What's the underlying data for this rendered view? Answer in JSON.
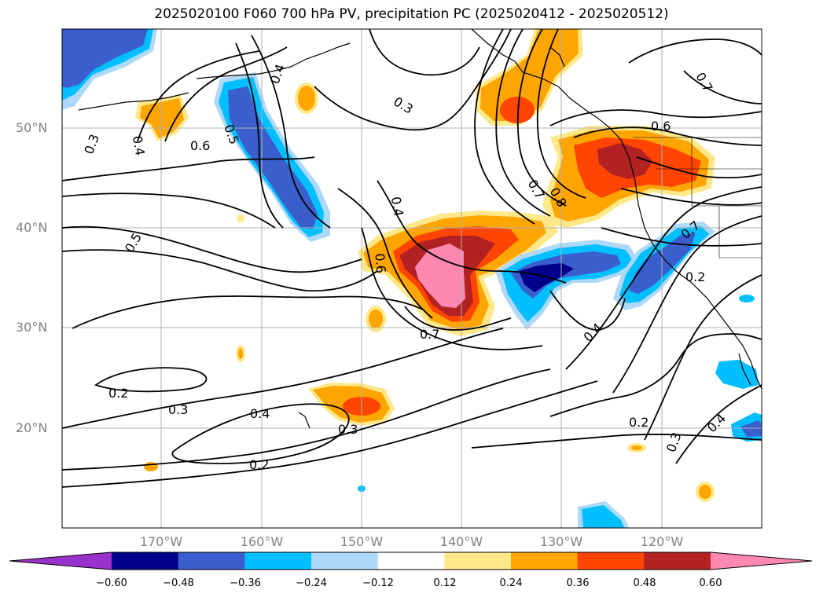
{
  "title": "2025020100 F060 700 hPa PV, precipitation PC (2025020412 - 2025020512)",
  "lat_labels": [
    "50°N",
    "40°N",
    "30°N",
    "20°N"
  ],
  "lon_labels": [
    "170°W",
    "160°W",
    "150°W",
    "140°W",
    "130°W",
    "120°W"
  ],
  "contour_labels": [
    "0.3",
    "0.4",
    "0.6",
    "0.5",
    "0.4",
    "0.3",
    "0.7",
    "0.6",
    "0.8",
    "0.7",
    "0.5",
    "0.4",
    "0.6",
    "0.7",
    "0.2",
    "0.4",
    "0.2",
    "0.3",
    "0.4",
    "0.3",
    "0.2",
    "0.2",
    "0.3",
    "0.4",
    "0.7"
  ],
  "colorbar": {
    "ticks": [
      "−0.60",
      "−0.48",
      "−0.36",
      "−0.24",
      "−0.12",
      "0.12",
      "0.24",
      "0.36",
      "0.48",
      "0.60"
    ],
    "colors": [
      "#9932cc",
      "#00008b",
      "#3a5fcd",
      "#00bfff",
      "#add8f8",
      "#ffffff",
      "#ffe88a",
      "#ffa500",
      "#ff4500",
      "#b22222",
      "#ff88b0"
    ]
  },
  "colors": {
    "neg1": "#add8f8",
    "neg2": "#00bfff",
    "neg3": "#3a5fcd",
    "neg4": "#00008b",
    "pos1": "#ffe88a",
    "pos2": "#ffa500",
    "pos3": "#ff4500",
    "pos4": "#b22222",
    "pos5": "#ff88b0"
  }
}
